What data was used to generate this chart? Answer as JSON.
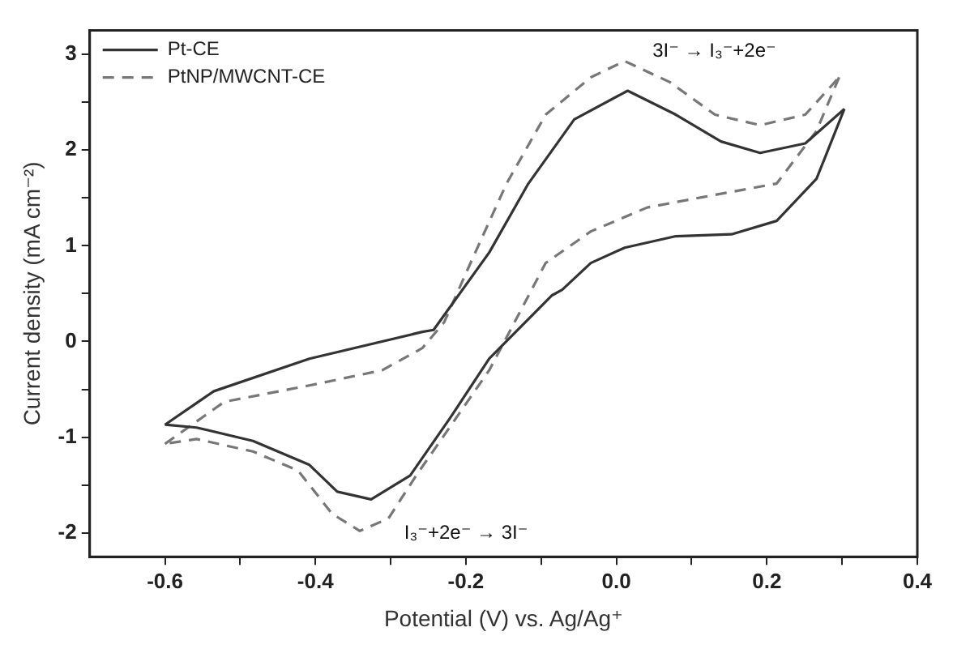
{
  "chart_data": {
    "type": "line",
    "xlabel": "Potential (V) vs. Ag/Ag⁺",
    "ylabel": "Current density (mA cm⁻²)",
    "xlim": [
      -0.7,
      0.4
    ],
    "xticks": [
      -0.6,
      {
        "value": -0.5,
        "label": null
      },
      -0.4,
      {
        "value": -0.3,
        "label": null
      },
      -0.2,
      {
        "value": -0.1,
        "label": null
      },
      {
        "value": 0,
        "label": "0.0"
      },
      {
        "value": 0.1,
        "label": null
      },
      0.2,
      {
        "value": 0.3,
        "label": null
      },
      0.4
    ],
    "ylim": [
      -2.25,
      3.25
    ],
    "yticks": [
      -2,
      {
        "value": -1.5,
        "label": null
      },
      -1,
      {
        "value": -0.5,
        "label": null
      },
      0,
      {
        "value": 0.5,
        "label": null
      },
      1,
      {
        "value": 1.5,
        "label": null
      },
      2,
      {
        "value": 2.5,
        "label": null
      },
      3
    ],
    "legend": "top left",
    "marker": "none",
    "series": [
      {
        "name": "Pt-CE",
        "color": "#333333",
        "line_style": "solid",
        "x": [
          -0.6,
          -0.535,
          -0.408,
          -0.258,
          -0.243,
          -0.169,
          -0.117,
          -0.056,
          0.015,
          0.079,
          0.139,
          0.191,
          0.251,
          0.303
        ],
        "values": [
          -0.87,
          -0.52,
          -0.18,
          0.1,
          0.12,
          0.93,
          1.65,
          2.32,
          2.62,
          2.37,
          2.09,
          1.97,
          2.07,
          2.43
        ]
      },
      {
        "color": "#333333",
        "line_style": "solid",
        "x": [
          0.303,
          0.266,
          0.213,
          0.153,
          0.079,
          0.011,
          -0.034,
          -0.072,
          -0.086,
          -0.169,
          -0.221,
          -0.274,
          -0.326,
          -0.371,
          -0.408,
          -0.483,
          -0.558,
          -0.6
        ],
        "values": [
          2.43,
          1.7,
          1.26,
          1.12,
          1.1,
          0.98,
          0.82,
          0.54,
          0.48,
          -0.18,
          -0.8,
          -1.4,
          -1.65,
          -1.57,
          -1.29,
          -1.04,
          -0.9,
          -0.87
        ]
      },
      {
        "name": "PtNP/MWCNT-CE",
        "color": "#777777",
        "line_style": "dashed",
        "x": [
          -0.6,
          -0.521,
          -0.408,
          -0.311,
          -0.258,
          -0.229,
          -0.191,
          -0.146,
          -0.094,
          -0.034,
          0.011,
          0.071,
          0.131,
          0.191,
          0.251,
          0.296
        ],
        "values": [
          -1.07,
          -0.63,
          -0.46,
          -0.3,
          -0.07,
          0.2,
          0.87,
          1.65,
          2.37,
          2.76,
          2.93,
          2.71,
          2.37,
          2.26,
          2.37,
          2.76
        ]
      },
      {
        "color": "#777777",
        "line_style": "dashed",
        "x": [
          0.296,
          0.266,
          0.213,
          0.116,
          0.041,
          -0.034,
          -0.094,
          -0.124,
          -0.169,
          -0.213,
          -0.266,
          -0.303,
          -0.341,
          -0.378,
          -0.423,
          -0.483,
          -0.558,
          -0.6
        ],
        "values": [
          2.76,
          2.2,
          1.65,
          1.51,
          1.4,
          1.15,
          0.82,
          0.37,
          -0.3,
          -0.8,
          -1.4,
          -1.85,
          -1.98,
          -1.8,
          -1.35,
          -1.15,
          -1.02,
          -1.07
        ]
      }
    ],
    "annotations": [
      "3I⁻ → I₃⁻+2e⁻",
      "I₃⁻+2e⁻ → 3I⁻"
    ]
  }
}
